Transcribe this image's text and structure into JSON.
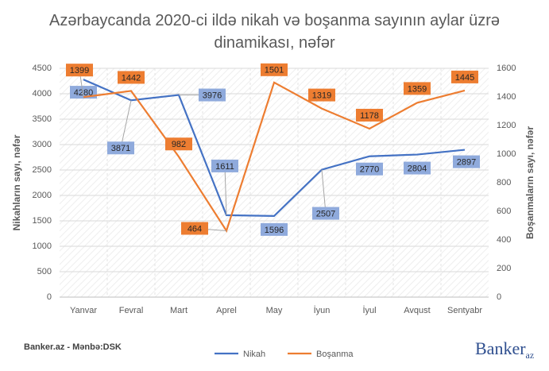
{
  "chart_data": {
    "type": "line",
    "title": "Azərbaycanda 2020-ci ildə nikah və boşanma sayının aylar üzrə dinamikası, nəfər",
    "y_label": "Nikahların sayı, nəfər",
    "y2_label": "Boşanmaların sayı, nəfər",
    "categories": [
      "Yanvar",
      "Fevral",
      "Mart",
      "Aprel",
      "May",
      "İyun",
      "İyul",
      "Avqust",
      "Sentyabr"
    ],
    "series": [
      {
        "name": "Nikah",
        "color": "#4472c4",
        "label_color": "#8faadc",
        "values": [
          4280,
          3871,
          3976,
          1611,
          1596,
          2507,
          2770,
          2804,
          2897
        ]
      },
      {
        "name": "Boşanma",
        "color": "#ed7d31",
        "label_color": "#ed7d31",
        "axis": "y2",
        "values": [
          1399,
          1442,
          982,
          464,
          1501,
          1319,
          1178,
          1359,
          1445
        ]
      }
    ],
    "ylim": [
      0,
      4500
    ],
    "yticks": [
      0,
      500,
      1000,
      1500,
      2000,
      2500,
      3000,
      3500,
      4000,
      4500
    ],
    "y2lim": [
      0,
      1600
    ],
    "y2ticks": [
      0,
      200,
      400,
      600,
      800,
      1000,
      1200,
      1400,
      1600
    ],
    "grid": true,
    "legend": "bottom",
    "source": "Banker.az - Mənbə:DSK",
    "logo": {
      "main": "Banker",
      "sub": "az"
    }
  }
}
